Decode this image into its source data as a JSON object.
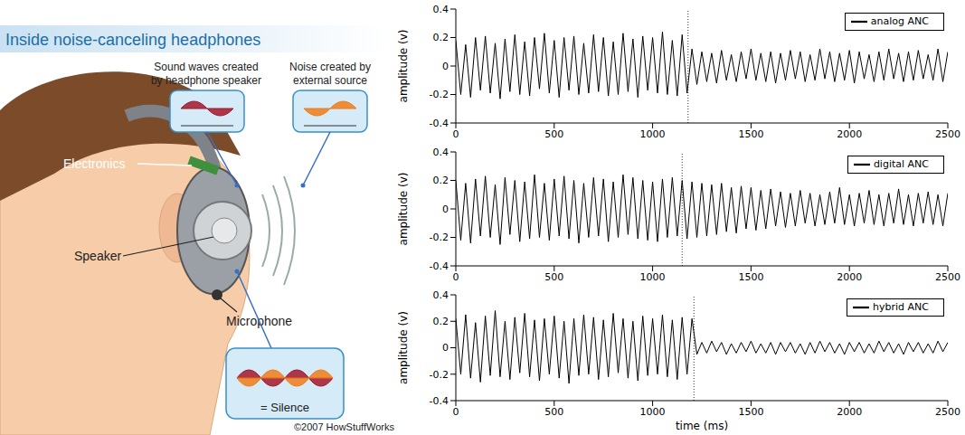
{
  "diagram": {
    "title": "Inside noise-canceling headphones",
    "wave_boxes": [
      {
        "caption": "Sound waves created by headphone speaker"
      },
      {
        "caption": "Noise created by external source"
      }
    ],
    "result": "= Silence",
    "parts": {
      "electronics": "Electronics",
      "speaker": "Speaker",
      "microphone": "Microphone"
    },
    "credit": "©2007 HowStuffWorks"
  },
  "chart_data": {
    "type": "line",
    "x_label": "time (ms)",
    "y_label": "amplitude (v)",
    "xlim": [
      0,
      2500
    ],
    "xticks": [
      0,
      500,
      1000,
      1500,
      2000,
      2500
    ],
    "ylim": [
      -0.4,
      0.4
    ],
    "yticks": [
      -0.4,
      -0.2,
      0,
      0.2,
      0.4
    ],
    "legend": "upper right",
    "x": [
      0,
      25,
      50,
      75,
      100,
      125,
      150,
      175,
      200,
      225,
      250,
      275,
      300,
      325,
      350,
      375,
      400,
      425,
      450,
      475,
      500,
      525,
      550,
      575,
      600,
      625,
      650,
      675,
      700,
      725,
      750,
      775,
      800,
      825,
      850,
      875,
      900,
      925,
      950,
      975,
      1000,
      1025,
      1050,
      1075,
      1100,
      1125,
      1150,
      1175,
      1200,
      1225,
      1250,
      1275,
      1300,
      1325,
      1350,
      1375,
      1400,
      1425,
      1450,
      1475,
      1500,
      1525,
      1550,
      1575,
      1600,
      1625,
      1650,
      1675,
      1700,
      1725,
      1750,
      1775,
      1800,
      1825,
      1850,
      1875,
      1900,
      1925,
      1950,
      1975,
      2000,
      2025,
      2050,
      2075,
      2100,
      2125,
      2150,
      2175,
      2200,
      2225,
      2250,
      2275,
      2300,
      2325,
      2350,
      2375,
      2400,
      2425,
      2450,
      2475,
      2500
    ],
    "series": [
      {
        "name": "analog ANC",
        "color": "#000000",
        "vline_x": 1180,
        "values": [
          0.18,
          -0.2,
          0.15,
          -0.22,
          0.2,
          -0.17,
          0.21,
          -0.19,
          0.16,
          -0.23,
          0.19,
          -0.18,
          0.22,
          -0.2,
          0.17,
          -0.21,
          0.2,
          -0.16,
          0.23,
          -0.19,
          0.18,
          -0.22,
          0.2,
          -0.17,
          0.21,
          -0.2,
          0.16,
          -0.19,
          0.22,
          -0.18,
          0.2,
          -0.21,
          0.17,
          -0.2,
          0.23,
          -0.18,
          0.19,
          -0.22,
          0.21,
          -0.17,
          0.2,
          -0.19,
          0.24,
          -0.2,
          0.18,
          -0.21,
          0.22,
          -0.19,
          0.12,
          -0.13,
          0.1,
          -0.11,
          0.09,
          -0.12,
          0.11,
          -0.1,
          0.08,
          -0.11,
          0.1,
          -0.09,
          0.12,
          -0.1,
          0.09,
          -0.11,
          0.1,
          -0.12,
          0.09,
          -0.1,
          0.11,
          -0.09,
          0.1,
          -0.11,
          0.08,
          -0.1,
          0.12,
          -0.09,
          0.1,
          -0.11,
          0.09,
          -0.1,
          0.11,
          -0.12,
          0.1,
          -0.09,
          0.08,
          -0.11,
          0.1,
          -0.1,
          0.12,
          -0.09,
          0.09,
          -0.11,
          0.1,
          -0.1,
          0.11,
          -0.09,
          0.08,
          -0.1,
          0.12,
          -0.11,
          0.1
        ]
      },
      {
        "name": "digital ANC",
        "color": "#000000",
        "vline_x": 1150,
        "values": [
          0.2,
          -0.22,
          0.18,
          -0.24,
          0.21,
          -0.19,
          0.23,
          -0.2,
          0.17,
          -0.25,
          0.22,
          -0.18,
          0.2,
          -0.23,
          0.19,
          -0.21,
          0.24,
          -0.2,
          0.18,
          -0.22,
          0.21,
          -0.19,
          0.23,
          -0.21,
          0.2,
          -0.24,
          0.18,
          -0.2,
          0.22,
          -0.19,
          0.21,
          -0.23,
          0.19,
          -0.2,
          0.24,
          -0.18,
          0.22,
          -0.21,
          0.2,
          -0.22,
          0.19,
          -0.23,
          0.21,
          -0.2,
          0.22,
          -0.19,
          0.2,
          -0.21,
          0.19,
          -0.2,
          0.18,
          -0.19,
          0.17,
          -0.18,
          0.18,
          -0.16,
          0.15,
          -0.17,
          0.16,
          -0.14,
          0.15,
          -0.15,
          0.13,
          -0.14,
          0.14,
          -0.12,
          0.12,
          -0.13,
          0.11,
          -0.12,
          0.13,
          -0.1,
          0.11,
          -0.12,
          0.1,
          -0.11,
          0.12,
          -0.1,
          0.15,
          -0.11,
          0.1,
          -0.12,
          0.11,
          -0.1,
          0.13,
          -0.11,
          0.1,
          -0.12,
          0.11,
          -0.1,
          0.14,
          -0.11,
          0.1,
          -0.12,
          0.11,
          -0.1,
          0.12,
          -0.11,
          0.1,
          -0.12,
          0.11
        ]
      },
      {
        "name": "hybrid ANC",
        "color": "#000000",
        "vline_x": 1210,
        "values": [
          0.22,
          -0.2,
          0.25,
          -0.23,
          0.19,
          -0.26,
          0.24,
          -0.21,
          0.28,
          -0.22,
          0.2,
          -0.24,
          0.23,
          -0.19,
          0.26,
          -0.22,
          0.21,
          -0.25,
          0.22,
          -0.2,
          0.24,
          -0.23,
          0.2,
          -0.27,
          0.22,
          -0.21,
          0.25,
          -0.2,
          0.23,
          -0.24,
          0.21,
          -0.22,
          0.26,
          -0.19,
          0.22,
          -0.23,
          0.2,
          -0.25,
          0.24,
          -0.21,
          0.22,
          -0.2,
          0.25,
          -0.22,
          0.21,
          -0.24,
          0.23,
          -0.2,
          0.22,
          -0.05,
          0.04,
          -0.04,
          0.05,
          -0.03,
          0.04,
          -0.05,
          0.03,
          -0.04,
          0.04,
          -0.03,
          0.05,
          -0.04,
          0.03,
          -0.04,
          0.04,
          -0.05,
          0.04,
          -0.03,
          0.04,
          -0.04,
          0.03,
          -0.05,
          0.04,
          -0.04,
          0.05,
          -0.03,
          0.04,
          -0.04,
          0.03,
          -0.05,
          0.04,
          -0.03,
          0.04,
          -0.04,
          0.03,
          -0.04,
          0.05,
          -0.03,
          0.04,
          -0.04,
          0.03,
          -0.05,
          0.04,
          -0.03,
          0.04,
          -0.04,
          0.03,
          -0.04,
          0.05,
          -0.03,
          0.04
        ]
      }
    ]
  }
}
